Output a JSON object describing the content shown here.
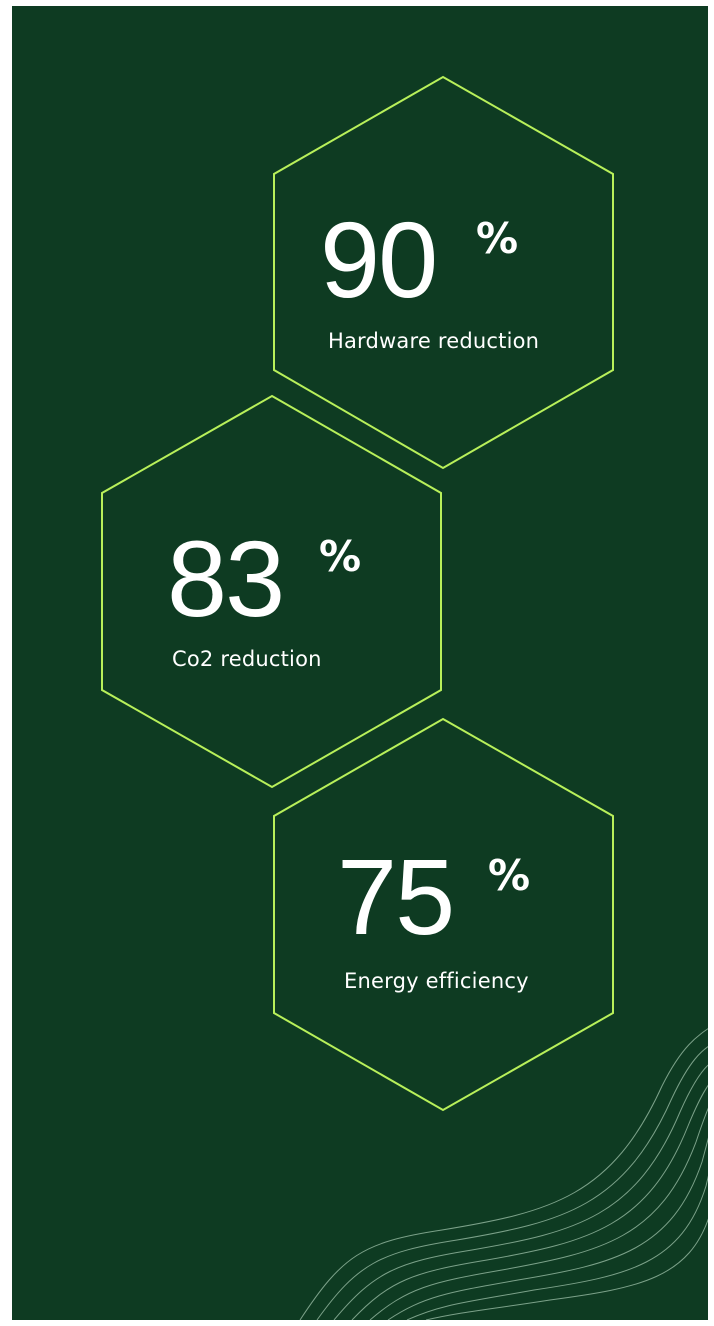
{
  "theme": {
    "background": "#0e3b22",
    "hex_stroke": "#b8f05a",
    "text": "#ffffff",
    "wave_stroke": "#8fb39b"
  },
  "stats": [
    {
      "value": "90",
      "unit": "%",
      "label": "Hardware reduction"
    },
    {
      "value": "83",
      "unit": "%",
      "label": "Co2 reduction"
    },
    {
      "value": "75",
      "unit": "%",
      "label": "Energy efficiency"
    }
  ]
}
